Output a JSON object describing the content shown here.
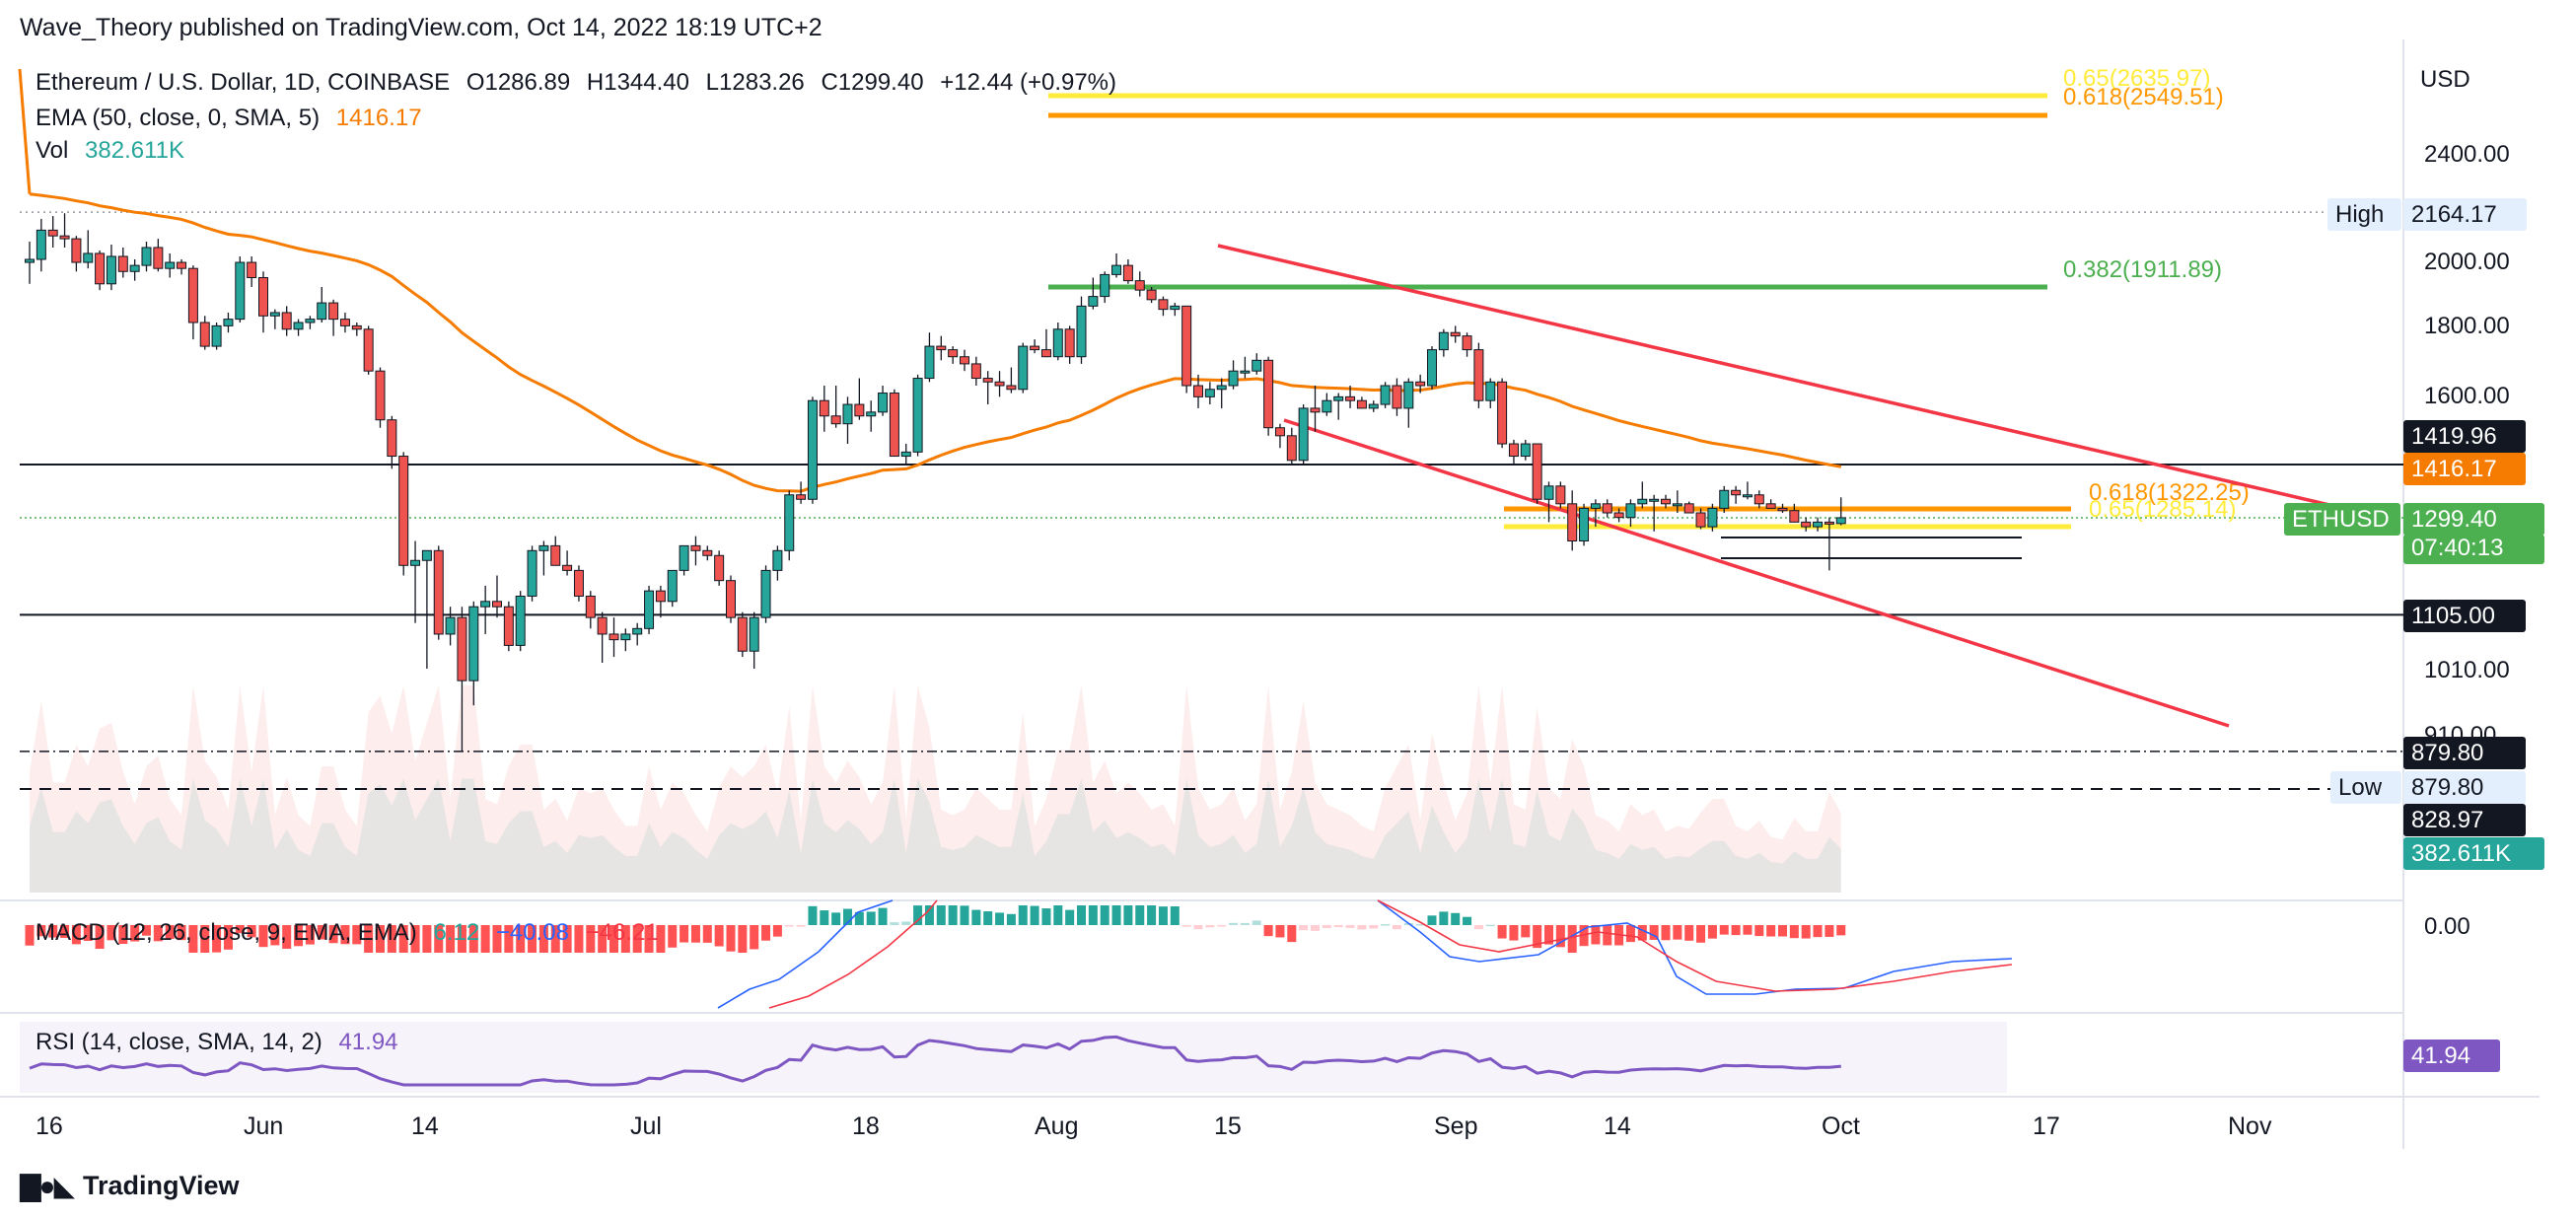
{
  "header": {
    "publisher_line": "Wave_Theory published on TradingView.com, Oct 14, 2022 18:19 UTC+2"
  },
  "legend": {
    "symbol": "Ethereum / U.S. Dollar, 1D, COINBASE",
    "open": "O1286.89",
    "high": "H1344.40",
    "low": "L1283.26",
    "close": "C1299.40",
    "change": "+12.44 (+0.97%)",
    "ema_label": "EMA (50, close, 0, SMA, 5)",
    "ema_value": "1416.17",
    "vol_label": "Vol",
    "vol_value": "382.611K"
  },
  "macd_legend": {
    "label": "MACD (12, 26, close, 9, EMA, EMA)",
    "hist": "6.12",
    "macd": "−40.08",
    "signal": "−46.21"
  },
  "rsi_legend": {
    "label": "RSI (14, close, SMA, 14, 2)",
    "value": "41.94"
  },
  "footer": {
    "brand": "TradingView"
  },
  "colors": {
    "up": "#26a69a",
    "down": "#ef5350",
    "ema": "#f57c00",
    "channel": "#f23645",
    "fib_green": "#4caf50",
    "fib_yellow": "#ffeb3b",
    "fib_orange": "#ff9800",
    "macd": "#2962ff",
    "signal": "#f23645",
    "rsi": "#7e57c2",
    "price_tag": "#4caf50"
  },
  "chart_data": {
    "type": "candlestick",
    "title": "Ethereum / U.S. Dollar, 1D, COINBASE",
    "currency": "USD",
    "y_axis_ticks": [
      "2400.00",
      "2000.00",
      "1800.00",
      "1600.00",
      "1010.00",
      "910.00",
      "0.00"
    ],
    "x_axis_ticks": [
      "16",
      "Jun",
      "14",
      "Jul",
      "18",
      "Aug",
      "15",
      "Sep",
      "14",
      "Oct",
      "17",
      "Nov"
    ],
    "scale": "log",
    "ohlc_description": "daily candles May 2022 - Oct 14 2022",
    "candles": [
      [
        "May 12",
        1990,
        2060,
        1920,
        2000
      ],
      [
        "May 13",
        2000,
        2140,
        1960,
        2100
      ],
      [
        "May 14",
        2100,
        2150,
        2040,
        2080
      ],
      [
        "May 15",
        2080,
        2160,
        2040,
        2070
      ],
      [
        "May 16",
        2070,
        2080,
        1960,
        1990
      ],
      [
        "May 17",
        1990,
        2100,
        1970,
        2020
      ],
      [
        "May 18",
        2020,
        2030,
        1900,
        1920
      ],
      [
        "May 19",
        1920,
        2050,
        1900,
        2010
      ],
      [
        "May 20",
        2010,
        2040,
        1940,
        1960
      ],
      [
        "May 21",
        1960,
        2000,
        1930,
        1980
      ],
      [
        "May 22",
        1980,
        2060,
        1960,
        2040
      ],
      [
        "May 23",
        2040,
        2070,
        1960,
        1970
      ],
      [
        "May 24",
        1970,
        2020,
        1940,
        1990
      ],
      [
        "May 25",
        1990,
        2000,
        1950,
        1970
      ],
      [
        "May 26",
        1970,
        1980,
        1750,
        1800
      ],
      [
        "May 27",
        1800,
        1820,
        1720,
        1730
      ],
      [
        "May 28",
        1730,
        1800,
        1720,
        1790
      ],
      [
        "May 29",
        1790,
        1830,
        1770,
        1810
      ],
      [
        "May 30",
        1810,
        2010,
        1800,
        1990
      ],
      [
        "May 31",
        1990,
        2010,
        1910,
        1940
      ],
      [
        "Jun 1",
        1940,
        1960,
        1770,
        1820
      ],
      [
        "Jun 2",
        1820,
        1840,
        1780,
        1830
      ],
      [
        "Jun 3",
        1830,
        1850,
        1760,
        1780
      ],
      [
        "Jun 4",
        1780,
        1810,
        1760,
        1800
      ],
      [
        "Jun 5",
        1800,
        1820,
        1780,
        1810
      ],
      [
        "Jun 6",
        1810,
        1910,
        1800,
        1860
      ],
      [
        "Jun 7",
        1860,
        1870,
        1760,
        1810
      ],
      [
        "Jun 8",
        1810,
        1830,
        1770,
        1790
      ],
      [
        "Jun 9",
        1790,
        1800,
        1760,
        1780
      ],
      [
        "Jun 10",
        1780,
        1790,
        1650,
        1660
      ],
      [
        "Jun 11",
        1660,
        1670,
        1510,
        1530
      ],
      [
        "Jun 12",
        1530,
        1540,
        1410,
        1440
      ],
      [
        "Jun 13",
        1440,
        1450,
        1180,
        1200
      ],
      [
        "Jun 14",
        1200,
        1250,
        1090,
        1210
      ],
      [
        "Jun 15",
        1210,
        1230,
        1010,
        1230
      ],
      [
        "Jun 16",
        1230,
        1240,
        1060,
        1070
      ],
      [
        "Jun 17",
        1070,
        1120,
        1050,
        1100
      ],
      [
        "Jun 18",
        1100,
        1120,
        880,
        990
      ],
      [
        "Jun 19",
        990,
        1130,
        950,
        1120
      ],
      [
        "Jun 20",
        1120,
        1160,
        1070,
        1130
      ],
      [
        "Jun 21",
        1130,
        1180,
        1100,
        1120
      ],
      [
        "Jun 22",
        1120,
        1130,
        1040,
        1050
      ],
      [
        "Jun 23",
        1050,
        1150,
        1040,
        1140
      ],
      [
        "Jun 24",
        1140,
        1240,
        1130,
        1230
      ],
      [
        "Jun 25",
        1230,
        1250,
        1180,
        1240
      ],
      [
        "Jun 26",
        1240,
        1260,
        1200,
        1200
      ],
      [
        "Jun 27",
        1200,
        1230,
        1180,
        1190
      ],
      [
        "Jun 28",
        1190,
        1200,
        1130,
        1140
      ],
      [
        "Jun 29",
        1140,
        1150,
        1080,
        1100
      ],
      [
        "Jun 30",
        1100,
        1110,
        1020,
        1070
      ],
      [
        "Jul 1",
        1070,
        1100,
        1030,
        1060
      ],
      [
        "Jul 2",
        1060,
        1080,
        1040,
        1070
      ],
      [
        "Jul 3",
        1070,
        1090,
        1050,
        1080
      ],
      [
        "Jul 4",
        1080,
        1160,
        1070,
        1150
      ],
      [
        "Jul 5",
        1150,
        1160,
        1100,
        1130
      ],
      [
        "Jul 6",
        1130,
        1190,
        1120,
        1190
      ],
      [
        "Jul 7",
        1190,
        1240,
        1180,
        1240
      ],
      [
        "Jul 8",
        1240,
        1260,
        1200,
        1230
      ],
      [
        "Jul 9",
        1230,
        1240,
        1210,
        1220
      ],
      [
        "Jul 10",
        1220,
        1230,
        1160,
        1170
      ],
      [
        "Jul 11",
        1170,
        1180,
        1090,
        1100
      ],
      [
        "Jul 12",
        1100,
        1110,
        1030,
        1040
      ],
      [
        "Jul 13",
        1040,
        1110,
        1010,
        1100
      ],
      [
        "Jul 14",
        1100,
        1200,
        1090,
        1190
      ],
      [
        "Jul 15",
        1190,
        1240,
        1170,
        1230
      ],
      [
        "Jul 16",
        1230,
        1360,
        1210,
        1350
      ],
      [
        "Jul 17",
        1350,
        1380,
        1330,
        1340
      ],
      [
        "Jul 18",
        1340,
        1590,
        1330,
        1580
      ],
      [
        "Jul 19",
        1580,
        1620,
        1500,
        1540
      ],
      [
        "Jul 20",
        1540,
        1620,
        1510,
        1520
      ],
      [
        "Jul 21",
        1520,
        1590,
        1470,
        1570
      ],
      [
        "Jul 22",
        1570,
        1640,
        1530,
        1540
      ],
      [
        "Jul 23",
        1540,
        1580,
        1500,
        1550
      ],
      [
        "Jul 24",
        1550,
        1620,
        1540,
        1600
      ],
      [
        "Jul 25",
        1600,
        1610,
        1440,
        1440
      ],
      [
        "Jul 26",
        1440,
        1470,
        1420,
        1450
      ],
      [
        "Jul 27",
        1450,
        1650,
        1440,
        1640
      ],
      [
        "Jul 28",
        1640,
        1770,
        1630,
        1730
      ],
      [
        "Jul 29",
        1730,
        1760,
        1690,
        1720
      ],
      [
        "Jul 30",
        1720,
        1730,
        1680,
        1700
      ],
      [
        "Jul 31",
        1700,
        1720,
        1660,
        1680
      ],
      [
        "Aug 1",
        1680,
        1700,
        1620,
        1640
      ],
      [
        "Aug 2",
        1640,
        1660,
        1570,
        1630
      ],
      [
        "Aug 3",
        1630,
        1660,
        1590,
        1620
      ],
      [
        "Aug 4",
        1620,
        1670,
        1600,
        1610
      ],
      [
        "Aug 5",
        1610,
        1740,
        1600,
        1730
      ],
      [
        "Aug 6",
        1730,
        1750,
        1710,
        1720
      ],
      [
        "Aug 7",
        1720,
        1780,
        1700,
        1700
      ],
      [
        "Aug 8",
        1700,
        1800,
        1690,
        1780
      ],
      [
        "Aug 9",
        1780,
        1790,
        1680,
        1700
      ],
      [
        "Aug 10",
        1700,
        1880,
        1680,
        1850
      ],
      [
        "Aug 11",
        1850,
        1940,
        1840,
        1880
      ],
      [
        "Aug 12",
        1880,
        1960,
        1860,
        1950
      ],
      [
        "Aug 13",
        1950,
        2020,
        1940,
        1980
      ],
      [
        "Aug 14",
        1980,
        2000,
        1920,
        1930
      ],
      [
        "Aug 15",
        1930,
        1960,
        1880,
        1900
      ],
      [
        "Aug 16",
        1900,
        1910,
        1860,
        1870
      ],
      [
        "Aug 17",
        1870,
        1880,
        1820,
        1840
      ],
      [
        "Aug 18",
        1840,
        1860,
        1820,
        1850
      ],
      [
        "Aug 19",
        1850,
        1850,
        1600,
        1620
      ],
      [
        "Aug 20",
        1620,
        1650,
        1560,
        1590
      ],
      [
        "Aug 21",
        1590,
        1630,
        1570,
        1610
      ],
      [
        "Aug 22",
        1610,
        1640,
        1560,
        1620
      ],
      [
        "Aug 23",
        1620,
        1690,
        1610,
        1660
      ],
      [
        "Aug 24",
        1660,
        1700,
        1640,
        1660
      ],
      [
        "Aug 25",
        1660,
        1710,
        1650,
        1690
      ],
      [
        "Aug 26",
        1690,
        1700,
        1490,
        1510
      ],
      [
        "Aug 27",
        1510,
        1520,
        1460,
        1490
      ],
      [
        "Aug 28",
        1490,
        1510,
        1420,
        1430
      ],
      [
        "Aug 29",
        1430,
        1570,
        1420,
        1560
      ],
      [
        "Aug 30",
        1560,
        1620,
        1500,
        1550
      ],
      [
        "Aug 31",
        1550,
        1600,
        1540,
        1580
      ],
      [
        "Sep 1",
        1580,
        1600,
        1530,
        1590
      ],
      [
        "Sep 2",
        1590,
        1620,
        1560,
        1580
      ],
      [
        "Sep 3",
        1580,
        1590,
        1560,
        1560
      ],
      [
        "Sep 4",
        1560,
        1580,
        1550,
        1570
      ],
      [
        "Sep 5",
        1570,
        1630,
        1560,
        1620
      ],
      [
        "Sep 6",
        1620,
        1640,
        1540,
        1560
      ],
      [
        "Sep 7",
        1560,
        1640,
        1510,
        1630
      ],
      [
        "Sep 8",
        1630,
        1650,
        1600,
        1620
      ],
      [
        "Sep 9",
        1620,
        1730,
        1610,
        1720
      ],
      [
        "Sep 10",
        1720,
        1780,
        1700,
        1770
      ],
      [
        "Sep 11",
        1770,
        1790,
        1740,
        1760
      ],
      [
        "Sep 12",
        1760,
        1770,
        1700,
        1720
      ],
      [
        "Sep 13",
        1720,
        1740,
        1560,
        1580
      ],
      [
        "Sep 14",
        1580,
        1640,
        1560,
        1630
      ],
      [
        "Sep 15",
        1630,
        1640,
        1460,
        1470
      ],
      [
        "Sep 16",
        1470,
        1480,
        1420,
        1440
      ],
      [
        "Sep 17",
        1440,
        1480,
        1430,
        1470
      ],
      [
        "Sep 18",
        1470,
        1470,
        1330,
        1340
      ],
      [
        "Sep 19",
        1340,
        1380,
        1290,
        1370
      ],
      [
        "Sep 20",
        1370,
        1380,
        1320,
        1330
      ],
      [
        "Sep 21",
        1330,
        1360,
        1230,
        1250
      ],
      [
        "Sep 22",
        1250,
        1330,
        1240,
        1320
      ],
      [
        "Sep 23",
        1320,
        1340,
        1280,
        1330
      ],
      [
        "Sep 24",
        1330,
        1340,
        1300,
        1310
      ],
      [
        "Sep 25",
        1310,
        1320,
        1290,
        1300
      ],
      [
        "Sep 26",
        1300,
        1340,
        1280,
        1330
      ],
      [
        "Sep 27",
        1330,
        1380,
        1320,
        1340
      ],
      [
        "Sep 28",
        1340,
        1350,
        1270,
        1340
      ],
      [
        "Sep 29",
        1340,
        1350,
        1320,
        1330
      ],
      [
        "Sep 30",
        1330,
        1360,
        1310,
        1330
      ],
      [
        "Oct 1",
        1330,
        1335,
        1310,
        1310
      ],
      [
        "Oct 2",
        1310,
        1320,
        1275,
        1280
      ],
      [
        "Oct 3",
        1280,
        1330,
        1270,
        1320
      ],
      [
        "Oct 4",
        1320,
        1370,
        1310,
        1360
      ],
      [
        "Oct 5",
        1360,
        1370,
        1330,
        1350
      ],
      [
        "Oct 6",
        1350,
        1380,
        1340,
        1350
      ],
      [
        "Oct 7",
        1350,
        1360,
        1320,
        1330
      ],
      [
        "Oct 8",
        1330,
        1340,
        1320,
        1320
      ],
      [
        "Oct 9",
        1320,
        1330,
        1310,
        1315
      ],
      [
        "Oct 10",
        1315,
        1330,
        1290,
        1290
      ],
      [
        "Oct 11",
        1290,
        1300,
        1270,
        1280
      ],
      [
        "Oct 12",
        1280,
        1300,
        1270,
        1290
      ],
      [
        "Oct 13",
        1290,
        1300,
        1190,
        1287
      ],
      [
        "Oct 14",
        1286.89,
        1344.4,
        1283.26,
        1299.4
      ]
    ],
    "ema50_value": 1416.17,
    "price_scale_labels": [
      {
        "text": "1419.96",
        "style": "black"
      },
      {
        "text": "1416.17",
        "style": "ema"
      },
      {
        "text": "1299.40",
        "style": "green"
      },
      {
        "text": "07:40:13",
        "style": "green"
      },
      {
        "text": "1105.00",
        "style": "black"
      },
      {
        "text": "879.80",
        "style": "black"
      },
      {
        "text": "879.80",
        "style": "light"
      },
      {
        "text": "828.97",
        "style": "black"
      },
      {
        "text": "382.611K",
        "style": "teal"
      },
      {
        "text": "2164.17",
        "style": "light"
      },
      {
        "text": "41.94",
        "style": "rsi"
      }
    ],
    "tags": {
      "high": "High",
      "low": "Low",
      "ethusd": "ETHUSD"
    },
    "horizontal_levels": [
      {
        "value": 1419.96,
        "style": "solid-black"
      },
      {
        "value": 1105.0,
        "style": "solid-black"
      },
      {
        "value": 879.8,
        "style": "dashdot"
      },
      {
        "value": 2164.17,
        "style": "dotted"
      },
      {
        "value": 1299.4,
        "style": "dotted-green"
      }
    ],
    "fib_levels": [
      {
        "label": "0.65(2635.97)",
        "value": 2635.97,
        "color": "#ffeb3b"
      },
      {
        "label": "0.618(2549.51)",
        "value": 2549.51,
        "color": "#ff9800"
      },
      {
        "label": "0.382(1911.89)",
        "value": 1911.89,
        "color": "#4caf50"
      },
      {
        "label": "0.618(1322.25)",
        "value": 1322.25,
        "color": "#ff9800"
      },
      {
        "label": "0.65(1285.14)",
        "value": 1285.14,
        "color": "#ffeb3b"
      }
    ],
    "volume_last": "382.611K",
    "macd_last": {
      "hist": 6.12,
      "macd": -40.08,
      "signal": -46.21
    },
    "rsi_last": 41.94
  }
}
